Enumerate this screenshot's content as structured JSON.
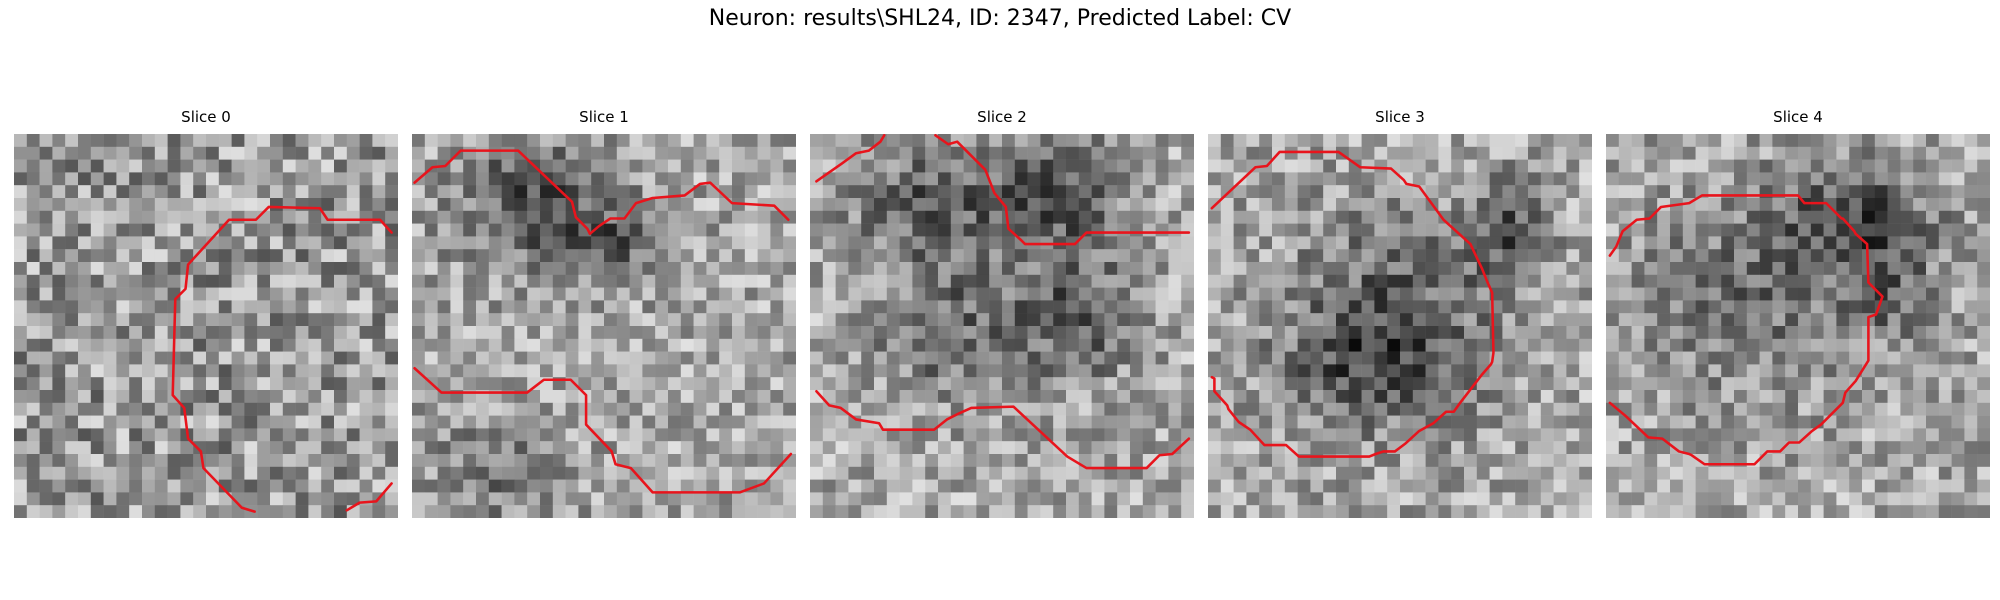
{
  "figure": {
    "title": "Neuron: results\\SHL24, ID: 2347, Predicted Label: CV"
  },
  "overlay_color": "#e8141c",
  "slices": [
    {
      "title": "Slice 0"
    },
    {
      "title": "Slice 1"
    },
    {
      "title": "Slice 2"
    },
    {
      "title": "Slice 3"
    },
    {
      "title": "Slice 4"
    }
  ]
}
